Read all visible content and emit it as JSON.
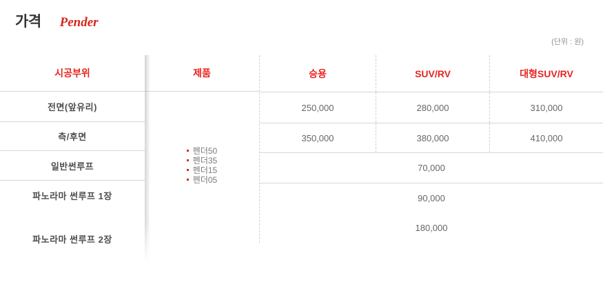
{
  "page": {
    "title": "가격",
    "brand": "Pender",
    "unit_note": "(단위 : 원)"
  },
  "colors": {
    "accent_red": "#e8241f",
    "brand_red": "#d9251d",
    "label_gray": "#4d4d4d",
    "value_gray": "#666666",
    "border_solid": "#d6d6d6",
    "border_dashed": "#cfcfcf"
  },
  "table": {
    "headers": {
      "area": "시공부위",
      "product": "제품",
      "passenger": "승용",
      "suv": "SUV/RV",
      "large_suv": "대형SUV/RV"
    },
    "areas": [
      "전면(앞유리)",
      "측/후면",
      "일반썬루프",
      "파노라마 썬루프 1장",
      "파노라마 썬루프 2장"
    ],
    "products": [
      "펜더50",
      "펜더35",
      "펜더15",
      "펜더05"
    ],
    "prices": {
      "rows_split": [
        {
          "passenger": "250,000",
          "suv": "280,000",
          "large_suv": "310,000"
        },
        {
          "passenger": "350,000",
          "suv": "380,000",
          "large_suv": "410,000"
        }
      ],
      "rows_merged": [
        "70,000",
        "90,000",
        "180,000"
      ]
    }
  }
}
